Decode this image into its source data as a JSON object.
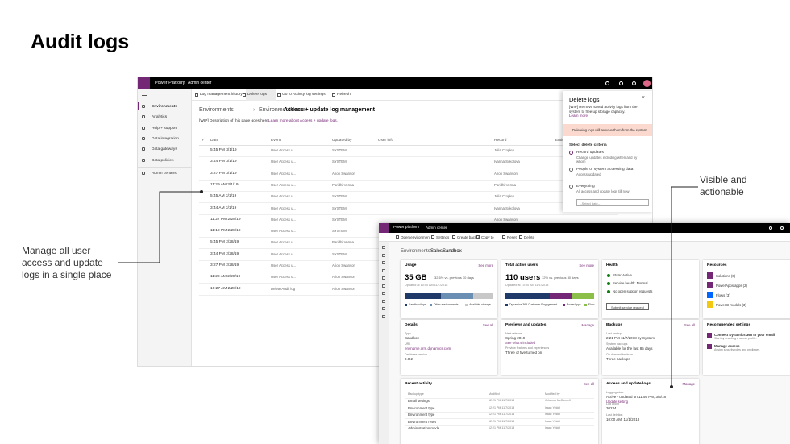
{
  "title": "Audit logs",
  "callouts": {
    "left": "Manage all user access and update logs in a single place",
    "right": "Visible and actionable"
  },
  "s1": {
    "brand": "Power Platform",
    "app": "Admin center",
    "nav": [
      "Environments",
      "Analytics",
      "Help + support",
      "Data integration",
      "Data gateways",
      "Data policies",
      "Admin centers"
    ],
    "toolbar": [
      "Log management history",
      "Delete logs",
      "Go to Activity log settings",
      "Refresh"
    ],
    "breadcrumb": [
      "Environments",
      "EnvironmentName",
      "Access + update log management"
    ],
    "description": "[WIP] Description of this page goes here.",
    "learn_more": "Learn more about Access + update logs.",
    "columns": [
      "Date",
      "Event",
      "Updated by",
      "User info",
      "Record",
      "Entit"
    ],
    "rows": [
      {
        "date": "5:45 PM 3/1/19",
        "event": "User Access u...",
        "updated_by": "SYSTEM",
        "record": "Julia Cropley"
      },
      {
        "date": "3:44 PM 3/1/19",
        "event": "User Access u...",
        "updated_by": "SYSTEM",
        "record": "Ivanna Sokolova"
      },
      {
        "date": "3:27 PM 3/1/19",
        "event": "User Access u...",
        "updated_by": "Arion Swanson",
        "record": "Arion Swanson"
      },
      {
        "date": "11:29 AM 3/1/19",
        "event": "User Access u...",
        "updated_by": "Paridhi Verma",
        "record": "Paridhi Verma"
      },
      {
        "date": "5:45 AM 3/1/19",
        "event": "User Access u...",
        "updated_by": "SYSTEM",
        "record": "Julia Cropley"
      },
      {
        "date": "3:44 AM 3/1/19",
        "event": "User Access u...",
        "updated_by": "SYSTEM",
        "record": "Ivanna Sokolova"
      },
      {
        "date": "11:27 PM 2/28/19",
        "event": "User Access u...",
        "updated_by": "SYSTEM",
        "record": "Arion Swanson"
      },
      {
        "date": "11:19 PM 2/28/19",
        "event": "User Access u...",
        "updated_by": "SYSTEM"
      },
      {
        "date": "5:45 PM 2/28/19",
        "event": "User Access u...",
        "updated_by": "Paridhi Verma"
      },
      {
        "date": "3:44 PM 2/28/19",
        "event": "User Access u...",
        "updated_by": "SYSTEM"
      },
      {
        "date": "3:27 PM 2/28/19",
        "event": "User Access u...",
        "updated_by": "Arion Swanson"
      },
      {
        "date": "11:29 AM 2/28/19",
        "event": "User Access u...",
        "updated_by": "Arion Swanson"
      },
      {
        "date": "10:27 AM 2/28/19",
        "event": "Delete Audit log",
        "updated_by": "Arion Swanson"
      }
    ],
    "panel": {
      "title": "Delete logs",
      "description": "[WIP] Remove saved activity logs from the system to free up storage capacity.",
      "learn_more": "Learn more",
      "warning": "Deleteing logs will remove them from the system.",
      "criteria": "Select delete criteria",
      "options": [
        {
          "label": "Record updates",
          "detail": "Change updates including when and by whom"
        },
        {
          "label": "People or system accessing data",
          "detail": "Access updated"
        },
        {
          "label": "Everything",
          "detail": "All access and update logs till now"
        }
      ],
      "select": "--Select date--"
    }
  },
  "s2": {
    "brand": "Power platform",
    "app": "Admin center",
    "toolbar": [
      "Open environment",
      "Settings",
      "Create backup",
      "Copy to",
      "Reset",
      "Delete"
    ],
    "breadcrumb": [
      "Environments",
      "SalesSandbox"
    ],
    "usage": {
      "title": "Usage",
      "link": "See more",
      "value": "35 GB",
      "change": "32.6% vs. previous 30 days",
      "updated": "Updated at 10:00 AM 11/1/2018",
      "legend": [
        "SandboxApps",
        "Other environments",
        "Available storage"
      ]
    },
    "users": {
      "title": "Total active users",
      "link": "See more",
      "value": "110 users",
      "change": "12% vs. previous 30 days",
      "updated": "Updated at 10:00 AM 11/1/2018",
      "legend": [
        "Dynamics 365 Customer Engagement",
        "PowerApps",
        "Flow"
      ]
    },
    "health": {
      "title": "Health",
      "items": [
        "State: Active",
        "Service health: Normal",
        "No open support requests"
      ],
      "button": "Submit service request"
    },
    "resources": {
      "title": "Resources",
      "items": [
        "Solutions (6)",
        "PowerApps apps (2)",
        "Flows (3)",
        "PowerBI models (3)"
      ]
    },
    "details": {
      "title": "Details",
      "link": "See all",
      "fields": [
        {
          "label": "Type",
          "value": "Sandbox"
        },
        {
          "label": "URL",
          "value": "envname.crm.dynamics.com"
        },
        {
          "label": "Database version",
          "value": "9.0.2"
        }
      ]
    },
    "previews": {
      "title": "Previews and updates",
      "link": "Manage",
      "fields": [
        {
          "label": "Next release",
          "value": "Spring 2019",
          "extra": "See what's included"
        },
        {
          "label": "Preview features and experiences",
          "value": "Three of five turned on"
        }
      ]
    },
    "backups": {
      "title": "Backups",
      "link": "See all",
      "fields": [
        {
          "label": "Last backup",
          "value": "2:21 PM 11/7/2018 by System"
        },
        {
          "label": "System backups",
          "value": "Available for the last 85 days"
        },
        {
          "label": "On demand backups",
          "value": "Three backups"
        }
      ]
    },
    "recommended": {
      "title": "Recommended settings",
      "items": [
        {
          "label": "Connect Dynamics 365 to your email",
          "detail": "Start by enabling a server profile."
        },
        {
          "label": "Manage access",
          "detail": "Assign security roles and privileges."
        }
      ]
    },
    "recent": {
      "title": "Recent activity",
      "link": "See all",
      "columns": [
        "Backup type",
        "Modified",
        "Modified by"
      ],
      "rows": [
        [
          "Email settings",
          "12:21 PM 11/7/2018",
          "Johanna McConnell"
        ],
        [
          "Environment type",
          "12:21 PM 11/7/2018",
          "Isaac Yeldel"
        ],
        [
          "Environment type",
          "12:21 PM 11/7/2018",
          "Isaac Yeldel"
        ],
        [
          "Environment reset",
          "12:21 PM 11/7/2018",
          "Isaac Yeldel"
        ],
        [
          "Administration mode",
          "12:21 PM 11/7/2018",
          "Isaac Yeldel"
        ]
      ]
    },
    "logs": {
      "title": "Access and update logs",
      "link": "Manage",
      "fields": [
        {
          "label": "Logging state",
          "value": "Active - updated on 11:56 PM, 3/5/18",
          "extra": "Update setting"
        },
        {
          "label": "Log count",
          "value": "30234"
        },
        {
          "label": "Last deletion",
          "value": "10:00 AM, 11/1/2018"
        }
      ]
    }
  }
}
